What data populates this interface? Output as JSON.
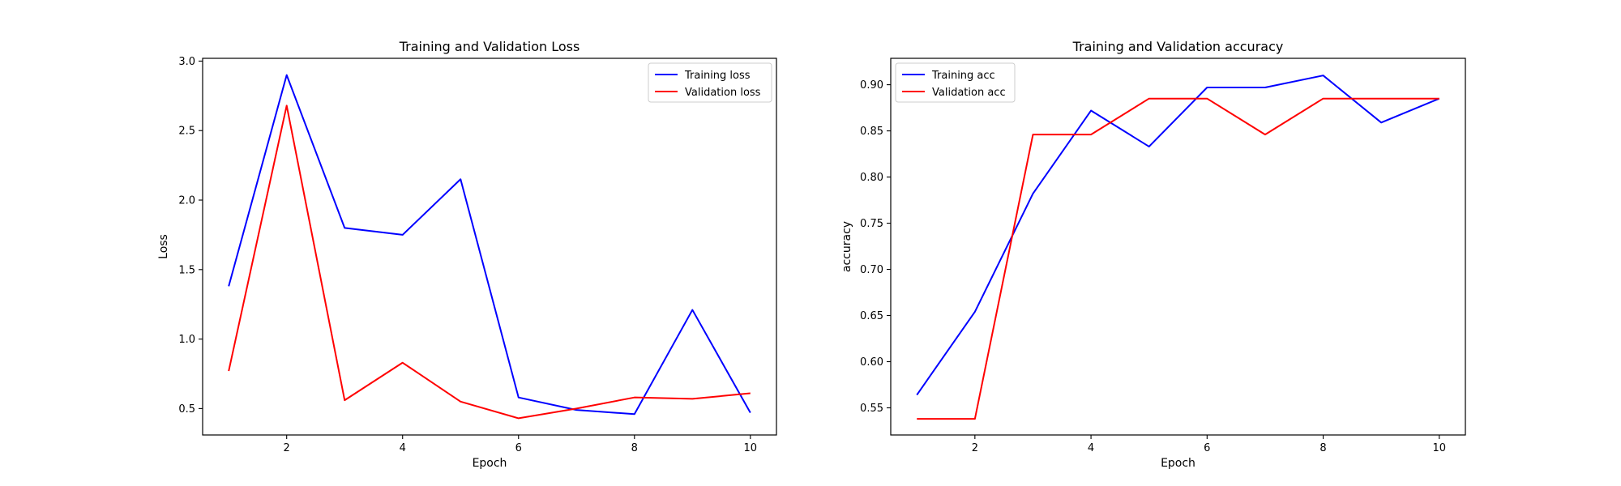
{
  "chart_data": [
    {
      "type": "line",
      "title": "Training and Validation Loss",
      "xlabel": "Epoch",
      "ylabel": "Loss",
      "x": [
        1,
        2,
        3,
        4,
        5,
        6,
        7,
        8,
        9,
        10
      ],
      "xlim": [
        0.55,
        10.45
      ],
      "ylim": [
        0.31,
        3.02
      ],
      "xticks": [
        2,
        4,
        6,
        8,
        10
      ],
      "yticks": [
        0.5,
        1.0,
        1.5,
        2.0,
        2.5,
        3.0
      ],
      "ytick_labels": [
        "0.5",
        "1.0",
        "1.5",
        "2.0",
        "2.5",
        "3.0"
      ],
      "legend_position": "top-right",
      "grid": false,
      "series": [
        {
          "name": "Training loss",
          "color": "#0000ff",
          "values": [
            1.38,
            2.9,
            1.8,
            1.75,
            2.15,
            0.58,
            0.49,
            0.46,
            1.21,
            0.47
          ]
        },
        {
          "name": "Validation loss",
          "color": "#ff0000",
          "values": [
            0.77,
            2.68,
            0.56,
            0.83,
            0.55,
            0.43,
            0.5,
            0.58,
            0.57,
            0.61
          ]
        }
      ]
    },
    {
      "type": "line",
      "title": "Training and Validation accuracy",
      "xlabel": "Epoch",
      "ylabel": "accuracy",
      "x": [
        1,
        2,
        3,
        4,
        5,
        6,
        7,
        8,
        9,
        10
      ],
      "xlim": [
        0.55,
        10.45
      ],
      "ylim": [
        0.5206,
        0.9286
      ],
      "xticks": [
        2,
        4,
        6,
        8,
        10
      ],
      "yticks": [
        0.55,
        0.6,
        0.65,
        0.7,
        0.75,
        0.8,
        0.85,
        0.9
      ],
      "ytick_labels": [
        "0.55",
        "0.60",
        "0.65",
        "0.70",
        "0.75",
        "0.80",
        "0.85",
        "0.90"
      ],
      "legend_position": "top-left",
      "grid": false,
      "series": [
        {
          "name": "Training acc",
          "color": "#0000ff",
          "values": [
            0.564,
            0.654,
            0.782,
            0.872,
            0.833,
            0.897,
            0.897,
            0.91,
            0.859,
            0.885
          ]
        },
        {
          "name": "Validation acc",
          "color": "#ff0000",
          "values": [
            0.538,
            0.538,
            0.846,
            0.846,
            0.885,
            0.885,
            0.846,
            0.885,
            0.885,
            0.885
          ]
        }
      ]
    }
  ]
}
